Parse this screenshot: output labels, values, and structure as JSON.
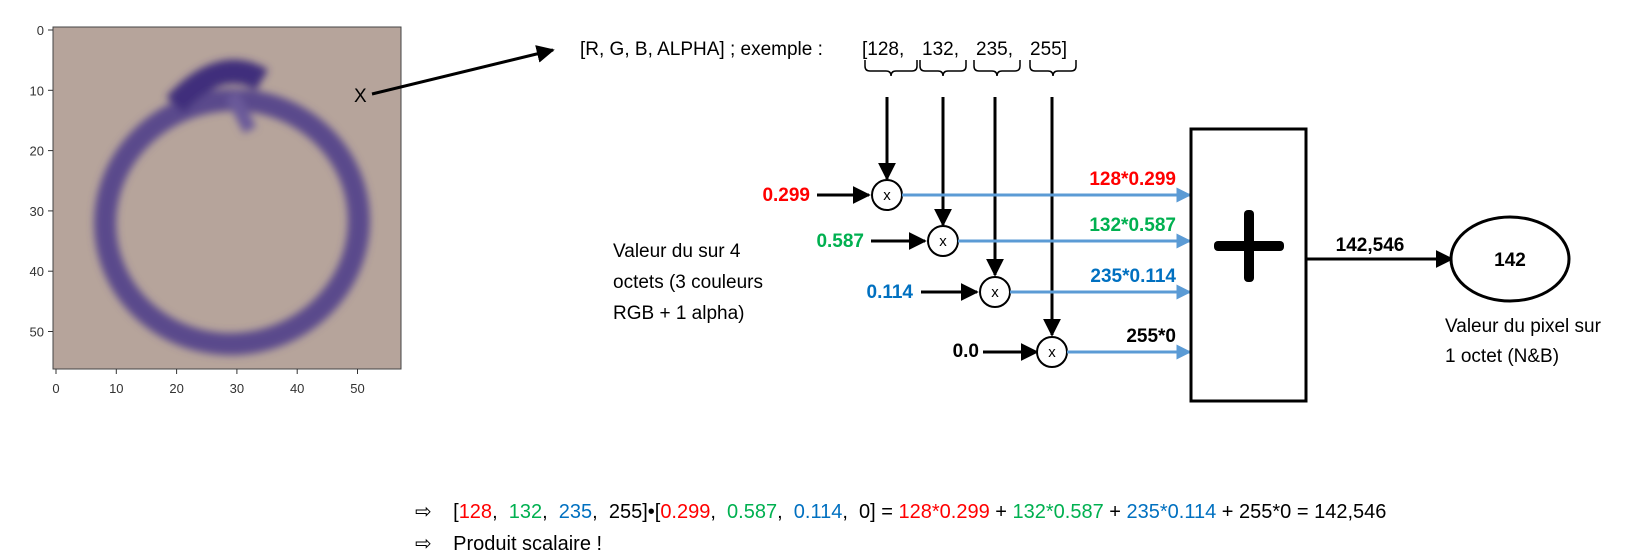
{
  "colors": {
    "red": "#ff0000",
    "green": "#00b050",
    "blue": "#0070c0",
    "black": "#000000",
    "wire": "#5b9bd5"
  },
  "image": {
    "y_ticks": [
      "0",
      "10",
      "20",
      "30",
      "40",
      "50"
    ],
    "x_ticks": [
      "0",
      "10",
      "20",
      "30",
      "40",
      "50"
    ],
    "pixel_marker": "X"
  },
  "rgba_line": {
    "prefix": "[R, G, B, ALPHA] ; exemple :",
    "values": [
      "[128,",
      "132,",
      "235,",
      "255]"
    ]
  },
  "side_note": [
    "Valeur du sur 4",
    "octets (3 couleurs",
    "RGB + 1 alpha)"
  ],
  "coefficients": [
    "0.299",
    "0.587",
    "0.114",
    "0.0"
  ],
  "multiplier_symbol": "x",
  "products": [
    "128*0.299",
    "132*0.587",
    "235*0.114",
    "255*0"
  ],
  "sum_symbol": "+",
  "sum_value": "142,546",
  "result_value": "142",
  "result_note": [
    "Valeur du pixel sur",
    "1 octet (N&B)"
  ],
  "formula": {
    "arrow_glyph": "⇨",
    "line1": [
      {
        "text": "[",
        "color": "black"
      },
      {
        "text": "128",
        "color": "red"
      },
      {
        "text": ",  ",
        "color": "black"
      },
      {
        "text": "132",
        "color": "green"
      },
      {
        "text": ",  ",
        "color": "black"
      },
      {
        "text": "235",
        "color": "blue"
      },
      {
        "text": ",  255]•[",
        "color": "black"
      },
      {
        "text": "0.299",
        "color": "red"
      },
      {
        "text": ",  ",
        "color": "black"
      },
      {
        "text": "0.587",
        "color": "green"
      },
      {
        "text": ",  ",
        "color": "black"
      },
      {
        "text": "0.114",
        "color": "blue"
      },
      {
        "text": ",  0] = ",
        "color": "black"
      },
      {
        "text": "128*0.299",
        "color": "red"
      },
      {
        "text": " + ",
        "color": "black"
      },
      {
        "text": "132*0.587",
        "color": "green"
      },
      {
        "text": " + ",
        "color": "black"
      },
      {
        "text": "235*0.114",
        "color": "blue"
      },
      {
        "text": " + 255*0 = 142,546",
        "color": "black"
      }
    ],
    "line2": "Produit scalaire !"
  }
}
